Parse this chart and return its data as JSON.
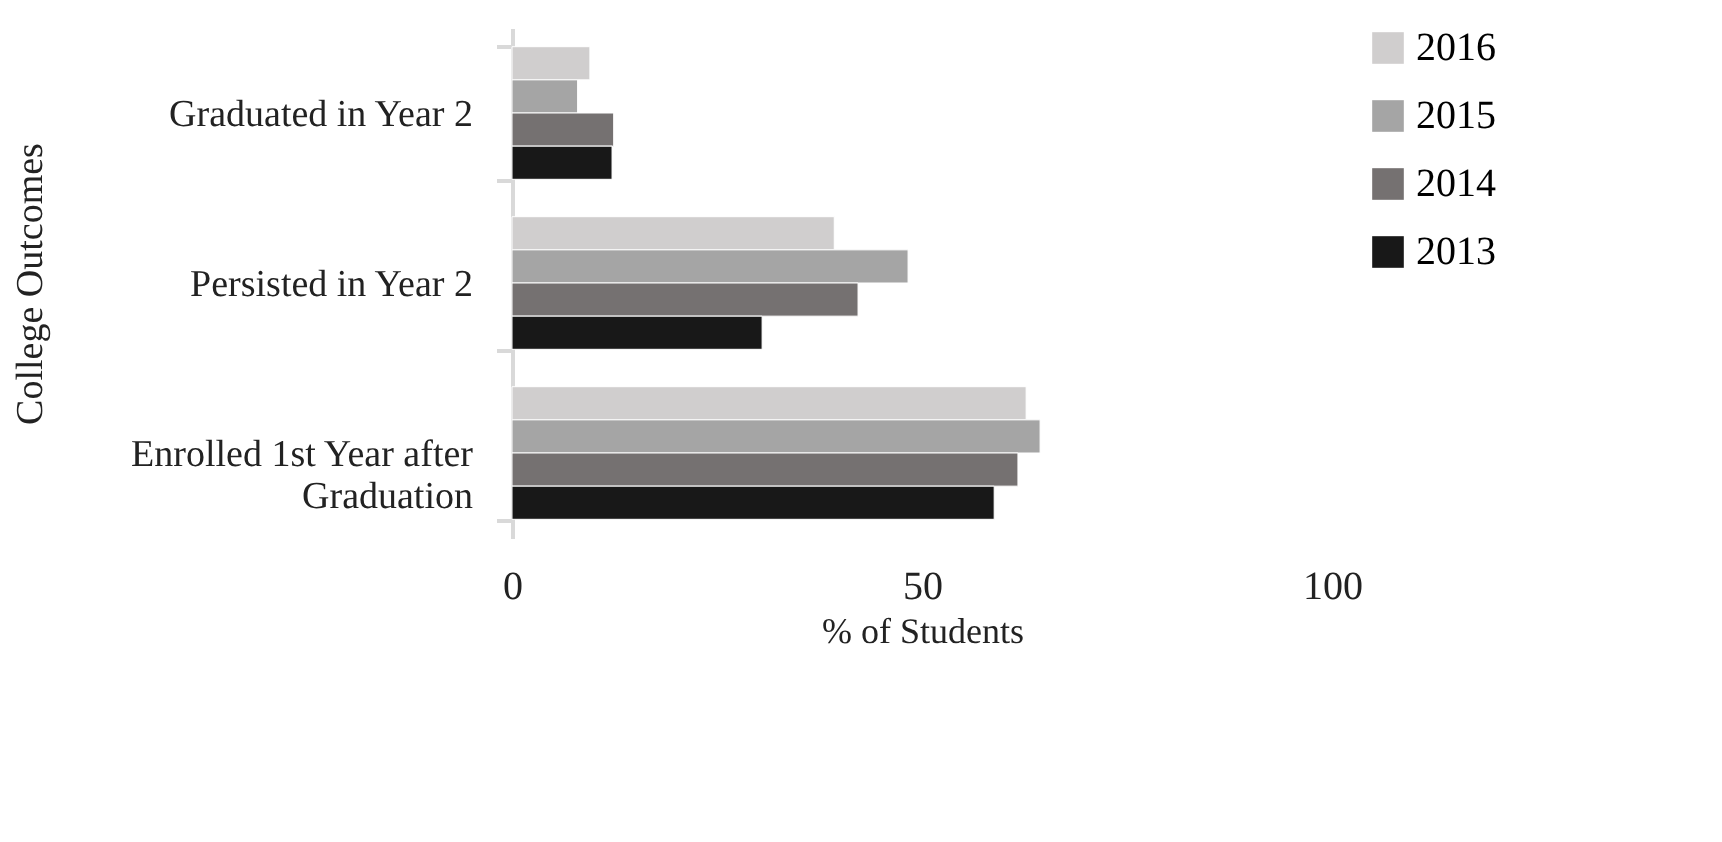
{
  "chart_data": {
    "type": "bar",
    "orientation": "horizontal",
    "xlabel": "% of Students",
    "ylabel": "College Outcomes",
    "categories": [
      "Graduated in Year 2",
      "Persisted in Year 2",
      "Enrolled 1st Year after Graduation"
    ],
    "series": [
      {
        "name": "2016",
        "color": "#d0cece",
        "values": [
          9.5,
          39.3,
          62.7
        ]
      },
      {
        "name": "2015",
        "color": "#a5a5a5",
        "values": [
          8.0,
          48.3,
          64.4
        ]
      },
      {
        "name": "2014",
        "color": "#757171",
        "values": [
          12.4,
          42.2,
          61.7
        ]
      },
      {
        "name": "2013",
        "color": "#181818",
        "values": [
          12.2,
          30.5,
          58.8
        ]
      }
    ],
    "xlim": [
      0,
      100
    ],
    "xticks": [
      0,
      50,
      100
    ],
    "grid": false,
    "legend": "right"
  }
}
